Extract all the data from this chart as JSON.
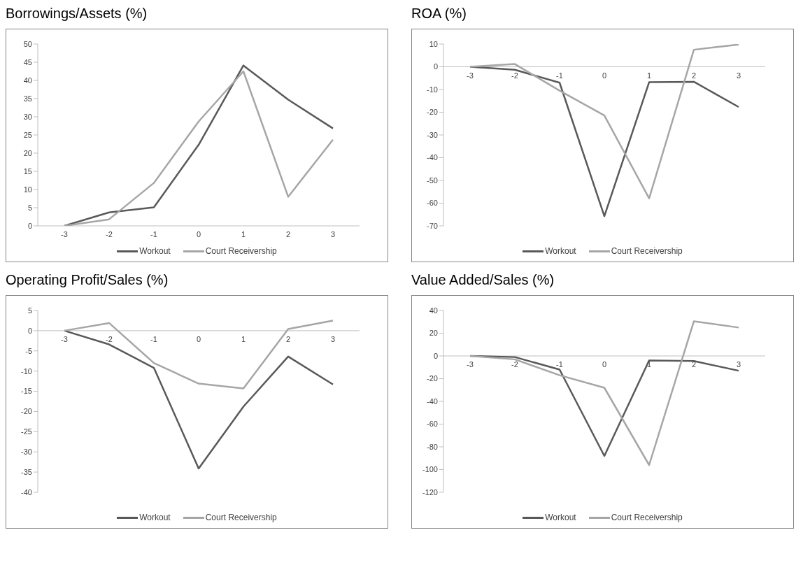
{
  "chart_data": [
    {
      "type": "line",
      "title": "Borrowings/Assets (%)",
      "categories": [
        "-3",
        "-2",
        "-1",
        "0",
        "1",
        "2",
        "3"
      ],
      "ylim": [
        0,
        50
      ],
      "yticks": [
        0,
        5,
        10,
        15,
        20,
        25,
        30,
        35,
        40,
        45,
        50
      ],
      "grid": false,
      "legend": "bottom",
      "series": [
        {
          "name": "Workout",
          "color": "#595959",
          "values": [
            0,
            3.7,
            5.1,
            22.3,
            44.1,
            34.7,
            26.8
          ]
        },
        {
          "name": "Court Receivership",
          "color": "#a6a6a6",
          "values": [
            0,
            1.8,
            11.8,
            28.7,
            42.5,
            8.0,
            23.7
          ]
        }
      ]
    },
    {
      "type": "line",
      "title": "ROA (%)",
      "categories": [
        "-3",
        "-2",
        "-1",
        "0",
        "1",
        "2",
        "3"
      ],
      "ylim": [
        -70,
        10
      ],
      "yticks": [
        -70,
        -60,
        -50,
        -40,
        -30,
        -20,
        -10,
        0,
        10
      ],
      "grid": false,
      "legend": "bottom",
      "series": [
        {
          "name": "Workout",
          "color": "#595959",
          "values": [
            0,
            -1.3,
            -7,
            -65.7,
            -6.8,
            -6.6,
            -17.7
          ]
        },
        {
          "name": "Court Receivership",
          "color": "#a6a6a6",
          "values": [
            0,
            1.2,
            -10.5,
            -21.4,
            -57.9,
            7.5,
            9.8
          ]
        }
      ]
    },
    {
      "type": "line",
      "title": "Operating Profit/Sales (%)",
      "categories": [
        "-3",
        "-2",
        "-1",
        "0",
        "1",
        "2",
        "3"
      ],
      "ylim": [
        -40,
        5
      ],
      "yticks": [
        -40,
        -35,
        -30,
        -25,
        -20,
        -15,
        -10,
        -5,
        0,
        5
      ],
      "grid": false,
      "legend": "bottom",
      "series": [
        {
          "name": "Workout",
          "color": "#595959",
          "values": [
            0,
            -3.4,
            -9.2,
            -34.1,
            -18.8,
            -6.4,
            -13.3
          ]
        },
        {
          "name": "Court Receivership",
          "color": "#a6a6a6",
          "values": [
            0,
            1.9,
            -8,
            -13.1,
            -14.3,
            0.4,
            2.5
          ]
        }
      ]
    },
    {
      "type": "line",
      "title": "Value Added/Sales (%)",
      "categories": [
        "-3",
        "-2",
        "-1",
        "0",
        "1",
        "2",
        "3"
      ],
      "ylim": [
        -120,
        40
      ],
      "yticks": [
        -120,
        -100,
        -80,
        -60,
        -40,
        -20,
        0,
        20,
        40
      ],
      "grid": false,
      "legend": "bottom",
      "series": [
        {
          "name": "Workout",
          "color": "#595959",
          "values": [
            0,
            -1,
            -12,
            -88,
            -4,
            -4.5,
            -13
          ]
        },
        {
          "name": "Court Receivership",
          "color": "#a6a6a6",
          "values": [
            0,
            -3,
            -17,
            -28,
            -96,
            30.5,
            25
          ]
        }
      ]
    }
  ]
}
